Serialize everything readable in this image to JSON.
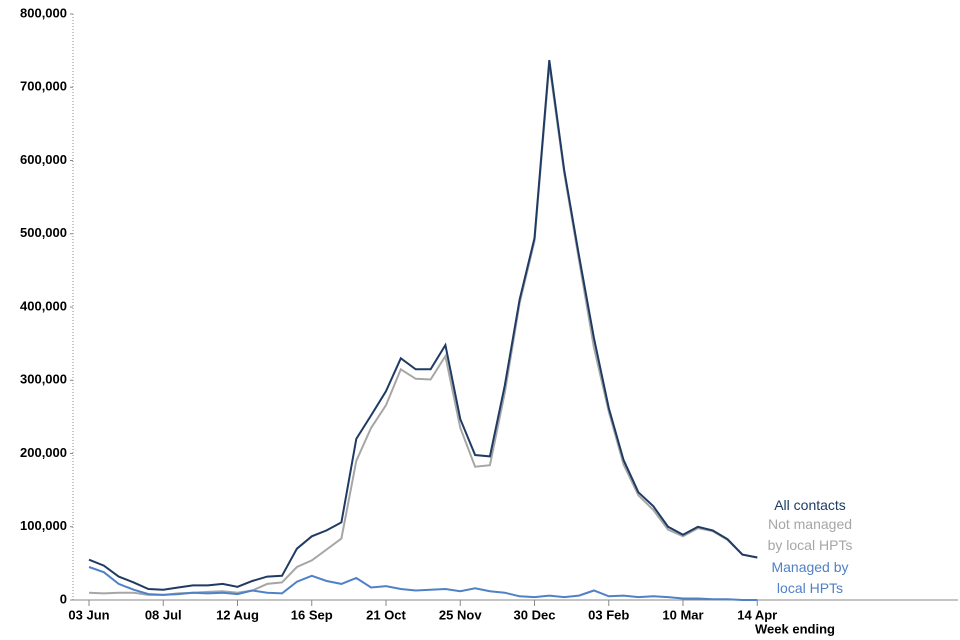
{
  "chart_data": {
    "type": "line",
    "x_label": "Week ending",
    "categories": [
      "03 Jun",
      null,
      null,
      null,
      null,
      "08 Jul",
      null,
      null,
      null,
      null,
      "12 Aug",
      null,
      null,
      null,
      null,
      "16 Sep",
      null,
      null,
      null,
      null,
      "21 Oct",
      null,
      null,
      null,
      null,
      "25 Nov",
      null,
      null,
      null,
      null,
      "30 Dec",
      null,
      null,
      null,
      null,
      "03 Feb",
      null,
      null,
      null,
      null,
      "10 Mar",
      null,
      null,
      null,
      null,
      "14 Apr"
    ],
    "series": [
      {
        "name": "All contacts",
        "color": "#1f3b63",
        "values": [
          55000,
          47000,
          32000,
          24000,
          15000,
          14000,
          17000,
          20000,
          20000,
          22000,
          18000,
          26000,
          32000,
          33000,
          70000,
          87000,
          95000,
          106000,
          220000,
          252000,
          285000,
          330000,
          315000,
          315000,
          348000,
          247000,
          198000,
          196000,
          293000,
          410000,
          494000,
          737000,
          587000,
          470000,
          358000,
          262000,
          191000,
          147000,
          128000,
          100000,
          89000,
          100000,
          95000,
          83000,
          62000,
          58000
        ]
      },
      {
        "name": "Not managed by local HPTs",
        "color": "#a6a6a6",
        "values": [
          10000,
          9000,
          10000,
          10000,
          7000,
          7000,
          9000,
          10000,
          11000,
          12000,
          10000,
          13000,
          22000,
          24000,
          45000,
          54000,
          69000,
          84000,
          190000,
          235000,
          266000,
          315000,
          302000,
          301000,
          333000,
          235000,
          182000,
          184000,
          283000,
          405000,
          490000,
          731000,
          583000,
          464000,
          345000,
          257000,
          185000,
          143000,
          123000,
          96000,
          87000,
          98000,
          94000,
          82000,
          62000,
          58000
        ]
      },
      {
        "name": "Managed by local HPTs",
        "color": "#4f81c7",
        "values": [
          45000,
          38000,
          22000,
          14000,
          8000,
          7000,
          8000,
          10000,
          9000,
          10000,
          8000,
          13000,
          10000,
          9000,
          25000,
          33000,
          26000,
          22000,
          30000,
          17000,
          19000,
          15000,
          13000,
          14000,
          15000,
          12000,
          16000,
          12000,
          10000,
          5000,
          4000,
          6000,
          4000,
          6000,
          13000,
          5000,
          6000,
          4000,
          5000,
          4000,
          2000,
          2000,
          1000,
          1000,
          0,
          0
        ]
      }
    ],
    "ylim": [
      0,
      800000
    ],
    "yticks": [
      0,
      {
        "value": 100000,
        "label": "100,000"
      },
      {
        "value": 200000,
        "label": "200,000"
      },
      {
        "value": 300000,
        "label": "300,000"
      },
      {
        "value": 400000,
        "label": "400,000"
      },
      {
        "value": 500000,
        "label": "500,000"
      },
      {
        "value": 600000,
        "label": "600,000"
      },
      {
        "value": 700000,
        "label": "700,000"
      },
      {
        "value": 800000,
        "label": "800,000"
      }
    ],
    "grid": false
  }
}
